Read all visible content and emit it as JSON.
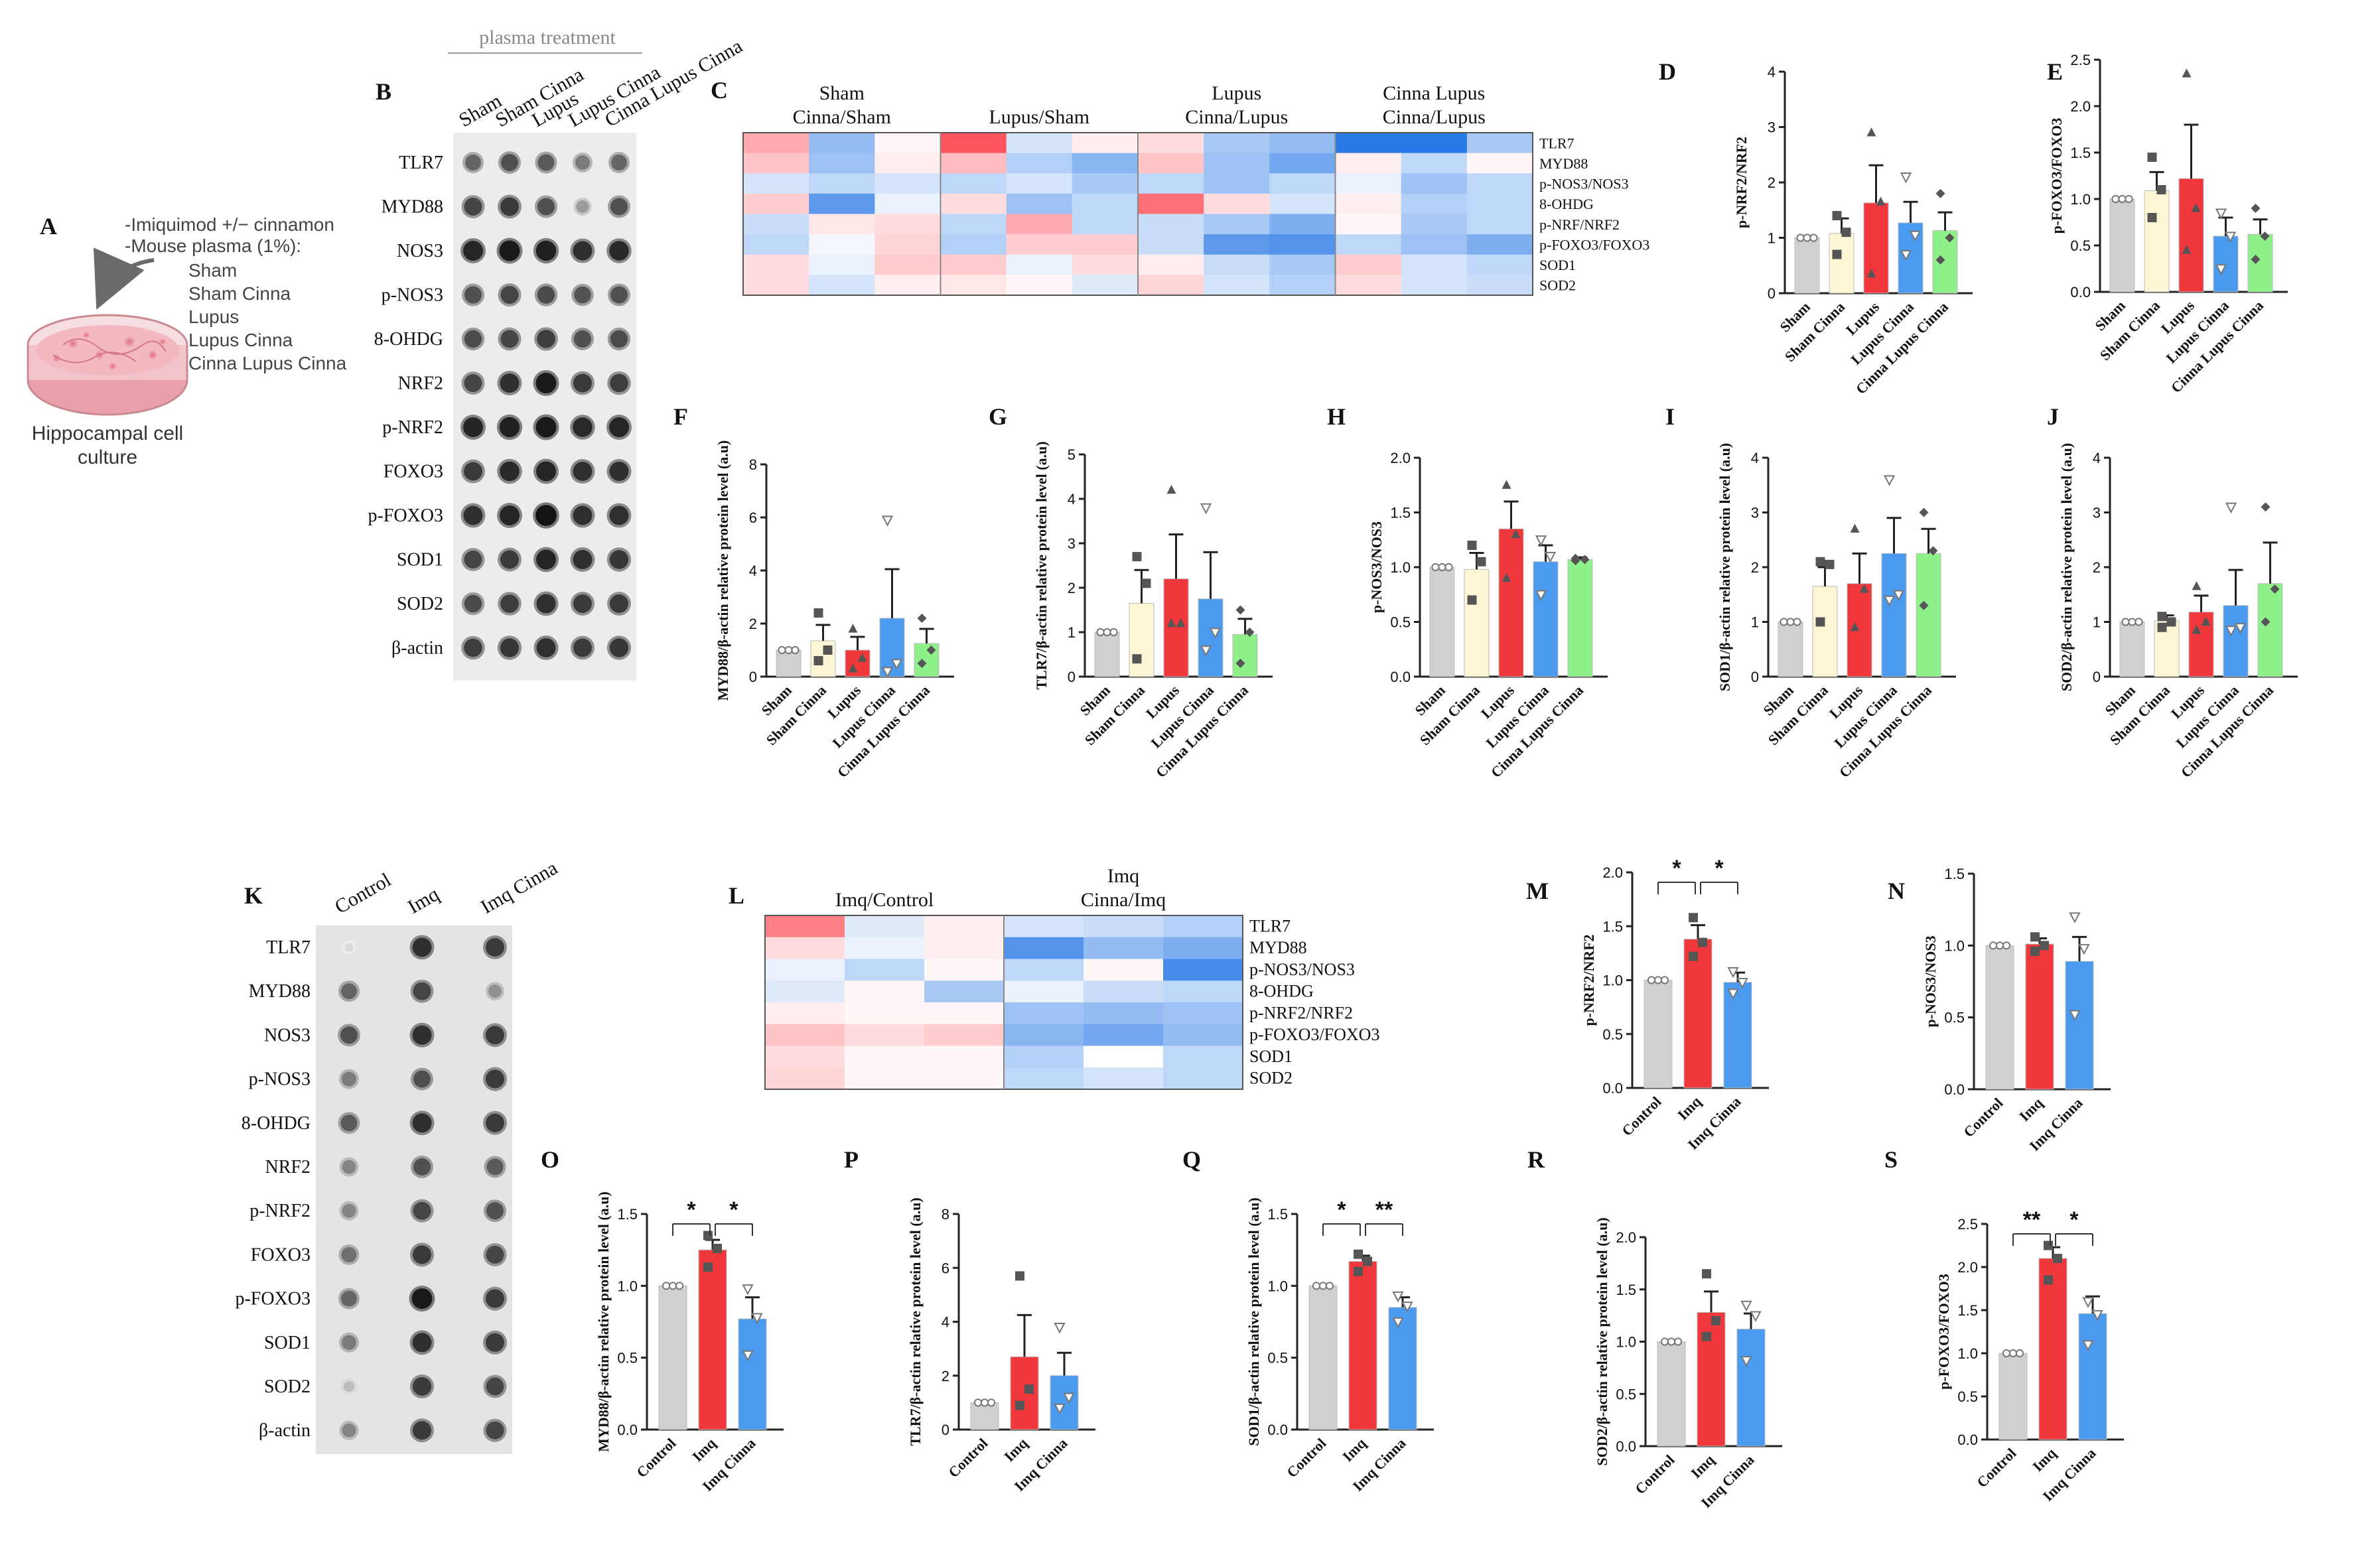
{
  "colors": {
    "Sham": "#d0d0d0",
    "Sham Cinna": "#fcf6d4",
    "Lupus": "#f0383c",
    "Lupus Cinna": "#4a9af0",
    "Cinna Lupus Cinna": "#8ef088",
    "Control": "#d0d0d0",
    "Imq": "#f0383c",
    "Imq Cinna": "#4a9af0"
  },
  "panel_A": {
    "letter": "A",
    "lines": [
      "-Imiquimod +/− cinnamon",
      "-Mouse plasma (1%):",
      "Sham",
      "Sham Cinna",
      "Lupus",
      "Lupus Cinna",
      "Cinna Lupus Cinna"
    ],
    "caption_lines": [
      "Hippocampal cell",
      "culture"
    ],
    "icon": "petri-dish-icon"
  },
  "panel_B": {
    "letter": "B",
    "header": "plasma treatment",
    "columns": [
      "Sham",
      "Sham Cinna",
      "Lupus",
      "Lupus Cinna",
      "Cinna Lupus Cinna"
    ],
    "rows": [
      "TLR7",
      "MYD88",
      "NOS3",
      "p-NOS3",
      "8-OHDG",
      "NRF2",
      "p-NRF2",
      "FOXO3",
      "p-FOXO3",
      "SOD1",
      "SOD2",
      "β-actin"
    ],
    "dot_intensity": [
      [
        0.6,
        0.7,
        0.65,
        0.5,
        0.6
      ],
      [
        0.75,
        0.8,
        0.7,
        0.35,
        0.7
      ],
      [
        0.9,
        0.95,
        0.92,
        0.85,
        0.88
      ],
      [
        0.7,
        0.75,
        0.72,
        0.68,
        0.7
      ],
      [
        0.72,
        0.75,
        0.78,
        0.7,
        0.72
      ],
      [
        0.75,
        0.85,
        0.95,
        0.8,
        0.78
      ],
      [
        0.9,
        0.92,
        0.95,
        0.88,
        0.9
      ],
      [
        0.8,
        0.88,
        0.9,
        0.85,
        0.85
      ],
      [
        0.85,
        0.9,
        0.98,
        0.85,
        0.85
      ],
      [
        0.75,
        0.8,
        0.9,
        0.85,
        0.82
      ],
      [
        0.72,
        0.78,
        0.85,
        0.8,
        0.8
      ],
      [
        0.78,
        0.82,
        0.85,
        0.8,
        0.82
      ]
    ]
  },
  "panel_C": {
    "letter": "C",
    "groups": [
      [
        "Sham",
        "Cinna/Sham"
      ],
      [
        "Lupus/Sham"
      ],
      [
        "Lupus",
        "Cinna/Lupus"
      ],
      [
        "Cinna Lupus",
        "Cinna/Lupus"
      ]
    ],
    "rows": [
      "TLR7",
      "MYD88",
      "p-NOS3/NOS3",
      "8-OHDG",
      "p-NRF/NRF2",
      "p-FOXO3/FOXO3",
      "SOD1",
      "SOD2"
    ],
    "values": [
      [
        0.5,
        -0.5,
        0.05,
        1.0,
        -0.2,
        0.1,
        0.2,
        -0.4,
        -0.5,
        -1.0,
        -1.0,
        -0.4
      ],
      [
        0.35,
        -0.45,
        0.1,
        0.4,
        -0.35,
        -0.55,
        0.35,
        -0.45,
        -0.65,
        0.1,
        -0.3,
        0.05
      ],
      [
        -0.2,
        -0.3,
        -0.2,
        -0.3,
        -0.2,
        -0.4,
        -0.3,
        -0.45,
        -0.3,
        -0.1,
        -0.45,
        -0.3
      ],
      [
        0.3,
        -0.75,
        -0.1,
        0.2,
        -0.45,
        -0.3,
        0.85,
        0.2,
        -0.2,
        0.1,
        -0.35,
        -0.3
      ],
      [
        -0.25,
        0.15,
        0.2,
        -0.3,
        0.5,
        -0.3,
        -0.25,
        -0.4,
        -0.6,
        0.05,
        -0.4,
        -0.3
      ],
      [
        -0.3,
        -0.05,
        0.25,
        -0.35,
        0.3,
        0.3,
        -0.25,
        -0.75,
        -0.8,
        -0.3,
        -0.45,
        -0.6
      ],
      [
        0.2,
        -0.1,
        0.3,
        0.3,
        -0.1,
        0.2,
        0.1,
        -0.25,
        -0.4,
        0.3,
        -0.2,
        -0.3
      ],
      [
        0.2,
        -0.2,
        0.1,
        0.15,
        0.05,
        -0.15,
        0.25,
        -0.2,
        -0.35,
        0.2,
        -0.2,
        -0.25
      ]
    ]
  },
  "panel_K": {
    "letter": "K",
    "columns": [
      "Control",
      "Imq",
      "Imq Cinna"
    ],
    "rows": [
      "TLR7",
      "MYD88",
      "NOS3",
      "p-NOS3",
      "8-OHDG",
      "NRF2",
      "p-NRF2",
      "FOXO3",
      "p-FOXO3",
      "SOD1",
      "SOD2",
      "β-actin"
    ],
    "dot_intensity": [
      [
        0.05,
        0.85,
        0.8
      ],
      [
        0.6,
        0.75,
        0.4
      ],
      [
        0.7,
        0.85,
        0.8
      ],
      [
        0.5,
        0.7,
        0.8
      ],
      [
        0.65,
        0.85,
        0.8
      ],
      [
        0.45,
        0.7,
        0.65
      ],
      [
        0.45,
        0.75,
        0.7
      ],
      [
        0.55,
        0.8,
        0.75
      ],
      [
        0.6,
        0.95,
        0.8
      ],
      [
        0.5,
        0.85,
        0.8
      ],
      [
        0.2,
        0.8,
        0.75
      ],
      [
        0.45,
        0.8,
        0.75
      ]
    ]
  },
  "panel_L": {
    "letter": "L",
    "groups": [
      [
        "Imq/Control"
      ],
      [
        "Imq",
        "Cinna/Imq"
      ]
    ],
    "rows": [
      "TLR7",
      "MYD88",
      "p-NOS3/NOS3",
      "8-OHDG",
      "p-NRF2/NRF2",
      "p-FOXO3/FOXO3",
      "SOD1",
      "SOD2"
    ],
    "values": [
      [
        0.75,
        -0.15,
        0.1,
        -0.2,
        -0.25,
        -0.35
      ],
      [
        0.2,
        -0.1,
        0.1,
        -0.8,
        -0.5,
        -0.6
      ],
      [
        -0.1,
        -0.3,
        0.05,
        -0.3,
        0.05,
        -0.85
      ],
      [
        -0.15,
        0.05,
        -0.4,
        -0.1,
        -0.25,
        -0.3
      ],
      [
        0.1,
        0.05,
        0.05,
        -0.45,
        -0.5,
        -0.45
      ],
      [
        0.35,
        0.2,
        0.3,
        -0.55,
        -0.65,
        -0.5
      ],
      [
        0.2,
        0.05,
        0.05,
        -0.35,
        0.0,
        -0.3
      ],
      [
        0.25,
        0.05,
        0.05,
        -0.3,
        -0.2,
        -0.3
      ]
    ]
  },
  "chart_data": [
    {
      "id": "D",
      "type": "bar",
      "ylabel": "p-NRF2/NRF2",
      "ylim": [
        0,
        4
      ],
      "ticks": [
        "0",
        "1",
        "2",
        "3",
        "4"
      ],
      "categories": [
        "Sham",
        "Sham Cinna",
        "Lupus",
        "Lupus Cinna",
        "Cinna Lupus Cinna"
      ],
      "values": [
        1.0,
        1.08,
        1.63,
        1.27,
        1.13
      ],
      "errors": [
        0,
        0.27,
        0.68,
        0.38,
        0.33
      ],
      "points": [
        [
          1,
          1,
          1
        ],
        [
          0.7,
          1.1,
          1.4
        ],
        [
          0.35,
          1.65,
          2.9
        ],
        [
          0.7,
          1.05,
          2.1
        ],
        [
          0.6,
          1.0,
          1.8
        ]
      ],
      "markers": [
        "circle",
        "square",
        "triangle",
        "triangle-down",
        "diamond"
      ]
    },
    {
      "id": "E",
      "type": "bar",
      "ylabel": "p-FOXO3/FOXO3",
      "ylim": [
        0,
        2.5
      ],
      "ticks": [
        "0.0",
        "0.5",
        "1.0",
        "1.5",
        "2.0",
        "2.5"
      ],
      "categories": [
        "Sham",
        "Sham Cinna",
        "Lupus",
        "Lupus Cinna",
        "Cinna Lupus Cinna"
      ],
      "values": [
        1.0,
        1.09,
        1.22,
        0.6,
        0.62
      ],
      "errors": [
        0,
        0.2,
        0.58,
        0.2,
        0.16
      ],
      "points": [
        [
          1,
          1,
          1
        ],
        [
          0.8,
          1.1,
          1.45
        ],
        [
          0.45,
          0.9,
          2.35
        ],
        [
          0.25,
          0.6,
          0.85
        ],
        [
          0.35,
          0.6,
          0.9
        ]
      ],
      "markers": [
        "circle",
        "square",
        "triangle",
        "triangle-down",
        "diamond"
      ]
    },
    {
      "id": "F",
      "type": "bar",
      "ylabel": "MYD88/β-actin relative protein level (a.u)",
      "ylim": [
        0,
        8
      ],
      "ticks": [
        "0",
        "2",
        "4",
        "6",
        "8"
      ],
      "categories": [
        "Sham",
        "Sham Cinna",
        "Lupus",
        "Lupus Cinna",
        "Cinna Lupus Cinna"
      ],
      "values": [
        1.0,
        1.35,
        1.0,
        2.2,
        1.25
      ],
      "errors": [
        0,
        0.6,
        0.5,
        1.85,
        0.55
      ],
      "points": [
        [
          1,
          1,
          1
        ],
        [
          0.6,
          1.0,
          2.4
        ],
        [
          0.3,
          0.7,
          1.8
        ],
        [
          0.2,
          0.5,
          5.9
        ],
        [
          0.5,
          1.0,
          2.2
        ]
      ],
      "markers": [
        "circle",
        "square",
        "triangle",
        "triangle-down",
        "diamond"
      ]
    },
    {
      "id": "G",
      "type": "bar",
      "ylabel": "TLR7/β-actin relative protein level (a.u)",
      "ylim": [
        0,
        5
      ],
      "ticks": [
        "0",
        "1",
        "2",
        "3",
        "4",
        "5"
      ],
      "categories": [
        "Sham",
        "Sham Cinna",
        "Lupus",
        "Lupus Cinna",
        "Cinna Lupus Cinna"
      ],
      "values": [
        1.0,
        1.65,
        2.2,
        1.75,
        0.95
      ],
      "errors": [
        0,
        0.75,
        1.0,
        1.05,
        0.35
      ],
      "points": [
        [
          1,
          1,
          1
        ],
        [
          0.4,
          2.1,
          2.7
        ],
        [
          1.2,
          1.2,
          4.2
        ],
        [
          0.6,
          1.0,
          3.8
        ],
        [
          0.3,
          1.0,
          1.5
        ]
      ],
      "markers": [
        "circle",
        "square",
        "triangle",
        "triangle-down",
        "diamond"
      ]
    },
    {
      "id": "H",
      "type": "bar",
      "ylabel": "p-NOS3/NOS3",
      "ylim": [
        0,
        2
      ],
      "ticks": [
        "0.0",
        "0.5",
        "1.0",
        "1.5",
        "2.0"
      ],
      "categories": [
        "Sham",
        "Sham Cinna",
        "Lupus",
        "Lupus Cinna",
        "Cinna Lupus Cinna"
      ],
      "values": [
        1.0,
        0.98,
        1.35,
        1.05,
        1.07
      ],
      "errors": [
        0,
        0.15,
        0.25,
        0.15,
        0.02
      ],
      "points": [
        [
          1,
          1,
          1
        ],
        [
          0.7,
          1.05,
          1.2
        ],
        [
          0.9,
          1.3,
          1.75
        ],
        [
          0.75,
          1.1,
          1.25
        ],
        [
          1.06,
          1.07,
          1.08
        ]
      ],
      "markers": [
        "circle",
        "square",
        "triangle",
        "triangle-down",
        "diamond"
      ]
    },
    {
      "id": "I",
      "type": "bar",
      "ylabel": "SOD1/β-actin relative protein level (a.u)",
      "ylim": [
        0,
        4
      ],
      "ticks": [
        "0",
        "1",
        "2",
        "3",
        "4"
      ],
      "categories": [
        "Sham",
        "Sham Cinna",
        "Lupus",
        "Lupus Cinna",
        "Cinna Lupus Cinna"
      ],
      "values": [
        1.0,
        1.65,
        1.7,
        2.25,
        2.25
      ],
      "errors": [
        0,
        0.35,
        0.55,
        0.65,
        0.45
      ],
      "points": [
        [
          1,
          1,
          1
        ],
        [
          1.0,
          2.05,
          2.1
        ],
        [
          0.9,
          1.6,
          2.7
        ],
        [
          1.4,
          1.5,
          3.6
        ],
        [
          1.3,
          2.3,
          3.0
        ]
      ],
      "markers": [
        "circle",
        "square",
        "triangle",
        "triangle-down",
        "diamond"
      ]
    },
    {
      "id": "J",
      "type": "bar",
      "ylabel": "SOD2/β-actin relative protein level (a.u)",
      "ylim": [
        0,
        4
      ],
      "ticks": [
        "0",
        "1",
        "2",
        "3",
        "4"
      ],
      "categories": [
        "Sham",
        "Sham Cinna",
        "Lupus",
        "Lupus Cinna",
        "Cinna Lupus Cinna"
      ],
      "values": [
        1.0,
        1.02,
        1.18,
        1.3,
        1.7
      ],
      "errors": [
        0,
        0.1,
        0.3,
        0.65,
        0.75
      ],
      "points": [
        [
          1,
          1,
          1
        ],
        [
          0.9,
          1.0,
          1.1
        ],
        [
          0.85,
          1.0,
          1.65
        ],
        [
          0.85,
          0.9,
          3.1
        ],
        [
          1.0,
          1.6,
          3.1
        ]
      ],
      "markers": [
        "circle",
        "square",
        "triangle",
        "triangle-down",
        "diamond"
      ]
    },
    {
      "id": "M",
      "type": "bar",
      "ylabel": "p-NRF2/NRF2",
      "ylim": [
        0,
        2
      ],
      "ticks": [
        "0.0",
        "0.5",
        "1.0",
        "1.5",
        "2.0"
      ],
      "categories": [
        "Control",
        "Imq",
        "Imq Cinna"
      ],
      "values": [
        1.0,
        1.38,
        0.98
      ],
      "errors": [
        0,
        0.13,
        0.09
      ],
      "points": [
        [
          1,
          1,
          1
        ],
        [
          1.22,
          1.35,
          1.58
        ],
        [
          0.88,
          0.98,
          1.08
        ]
      ],
      "markers": [
        "circle",
        "square",
        "triangle-down"
      ],
      "sig": [
        {
          "from": 0,
          "to": 1,
          "label": "*"
        },
        {
          "from": 1,
          "to": 2,
          "label": "*"
        }
      ]
    },
    {
      "id": "N",
      "type": "bar",
      "ylabel": "p-NOS3/NOS3",
      "ylim": [
        0,
        1.5
      ],
      "ticks": [
        "0.0",
        "0.5",
        "1.0",
        "1.5"
      ],
      "categories": [
        "Control",
        "Imq",
        "Imq Cinna"
      ],
      "values": [
        1.0,
        1.01,
        0.89
      ],
      "errors": [
        0,
        0.04,
        0.17
      ],
      "points": [
        [
          1,
          1,
          1
        ],
        [
          0.96,
          1.0,
          1.06
        ],
        [
          0.52,
          0.98,
          1.2
        ]
      ],
      "markers": [
        "circle",
        "square",
        "triangle-down"
      ]
    },
    {
      "id": "O",
      "type": "bar",
      "ylabel": "MYD88/β-actin relative protein level (a.u)",
      "ylim": [
        0,
        1.5
      ],
      "ticks": [
        "0.0",
        "0.5",
        "1.0",
        "1.5"
      ],
      "categories": [
        "Control",
        "Imq",
        "Imq Cinna"
      ],
      "values": [
        1.0,
        1.25,
        0.77
      ],
      "errors": [
        0,
        0.07,
        0.15
      ],
      "points": [
        [
          1,
          1,
          1
        ],
        [
          1.13,
          1.26,
          1.35
        ],
        [
          0.52,
          0.78,
          0.98
        ]
      ],
      "markers": [
        "circle",
        "square",
        "triangle-down"
      ],
      "sig": [
        {
          "from": 0,
          "to": 1,
          "label": "*"
        },
        {
          "from": 1,
          "to": 2,
          "label": "*"
        }
      ]
    },
    {
      "id": "P",
      "type": "bar",
      "ylabel": "TLR7/β-actin relative protein level (a.u)",
      "ylim": [
        0,
        8
      ],
      "ticks": [
        "0",
        "2",
        "4",
        "6",
        "8"
      ],
      "categories": [
        "Control",
        "Imq",
        "Imq Cinna"
      ],
      "values": [
        1.0,
        2.7,
        2.0
      ],
      "errors": [
        0,
        1.55,
        0.85
      ],
      "points": [
        [
          1,
          1,
          1
        ],
        [
          0.9,
          1.5,
          5.7
        ],
        [
          0.8,
          1.2,
          3.8
        ]
      ],
      "markers": [
        "circle",
        "square",
        "triangle-down"
      ]
    },
    {
      "id": "Q",
      "type": "bar",
      "ylabel": "SOD1/β-actin relative protein level (a.u)",
      "ylim": [
        0,
        1.5
      ],
      "ticks": [
        "0.0",
        "0.5",
        "1.0",
        "1.5"
      ],
      "categories": [
        "Control",
        "Imq",
        "Imq Cinna"
      ],
      "values": [
        1.0,
        1.17,
        0.85
      ],
      "errors": [
        0,
        0.04,
        0.07
      ],
      "points": [
        [
          1,
          1,
          1
        ],
        [
          1.1,
          1.17,
          1.22
        ],
        [
          0.75,
          0.86,
          0.93
        ]
      ],
      "markers": [
        "circle",
        "square",
        "triangle-down"
      ],
      "sig": [
        {
          "from": 0,
          "to": 1,
          "label": "*"
        },
        {
          "from": 1,
          "to": 2,
          "label": "**"
        }
      ]
    },
    {
      "id": "R",
      "type": "bar",
      "ylabel": "SOD2/β-actin relative protein level (a.u)",
      "ylim": [
        0,
        2
      ],
      "ticks": [
        "0.0",
        "0.5",
        "1.0",
        "1.5",
        "2.0"
      ],
      "categories": [
        "Control",
        "Imq",
        "Imq Cinna"
      ],
      "values": [
        1.0,
        1.28,
        1.12
      ],
      "errors": [
        0,
        0.2,
        0.15
      ],
      "points": [
        [
          1,
          1,
          1
        ],
        [
          1.05,
          1.2,
          1.65
        ],
        [
          0.82,
          1.25,
          1.35
        ]
      ],
      "markers": [
        "circle",
        "square",
        "triangle-down"
      ]
    },
    {
      "id": "S",
      "type": "bar",
      "ylabel": "p-FOXO3/FOXO3",
      "ylim": [
        0,
        2.5
      ],
      "ticks": [
        "0.0",
        "0.5",
        "1.0",
        "1.5",
        "2.0",
        "2.5"
      ],
      "categories": [
        "Control",
        "Imq",
        "Imq Cinna"
      ],
      "values": [
        1.0,
        2.1,
        1.46
      ],
      "errors": [
        0,
        0.13,
        0.2
      ],
      "points": [
        [
          1,
          1,
          1
        ],
        [
          1.85,
          2.1,
          2.25
        ],
        [
          1.1,
          1.45,
          1.6
        ]
      ],
      "markers": [
        "circle",
        "square",
        "triangle-down"
      ],
      "sig": [
        {
          "from": 0,
          "to": 1,
          "label": "**"
        },
        {
          "from": 1,
          "to": 2,
          "label": "*"
        }
      ]
    }
  ]
}
